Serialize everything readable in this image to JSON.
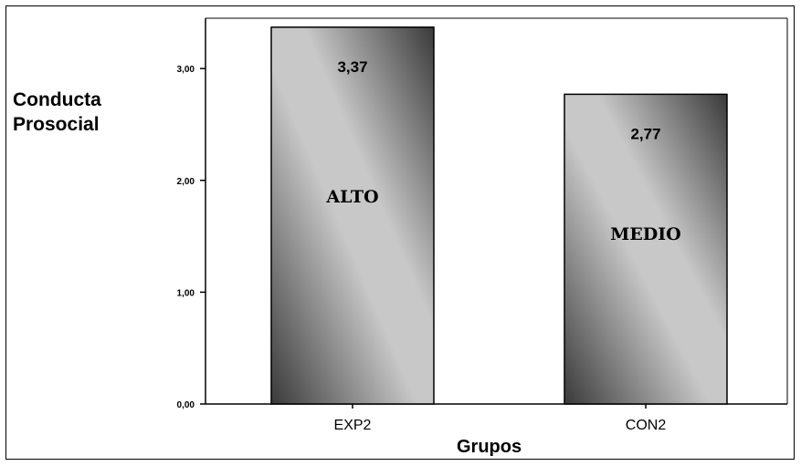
{
  "chart_data": {
    "type": "bar",
    "title": "",
    "ylabel_lines": [
      "Conducta",
      "Prosocial"
    ],
    "xlabel": "Grupos",
    "categories": [
      "EXP2",
      "CON2"
    ],
    "values": [
      3.37,
      2.77
    ],
    "value_labels": [
      "3,37",
      "2,77"
    ],
    "bar_labels": [
      "ALTO",
      "MEDIO"
    ],
    "ylim": [
      0,
      3.45
    ],
    "yticks": [
      0,
      1,
      2,
      3
    ],
    "ytick_labels": [
      "0,00",
      "1,00",
      "2,00",
      "3,00"
    ],
    "grid": false,
    "legend": "none",
    "colors": {
      "bar_light": "#c8c8c8",
      "bar_dark": "#3a3a3a",
      "axis": "#000000"
    }
  }
}
